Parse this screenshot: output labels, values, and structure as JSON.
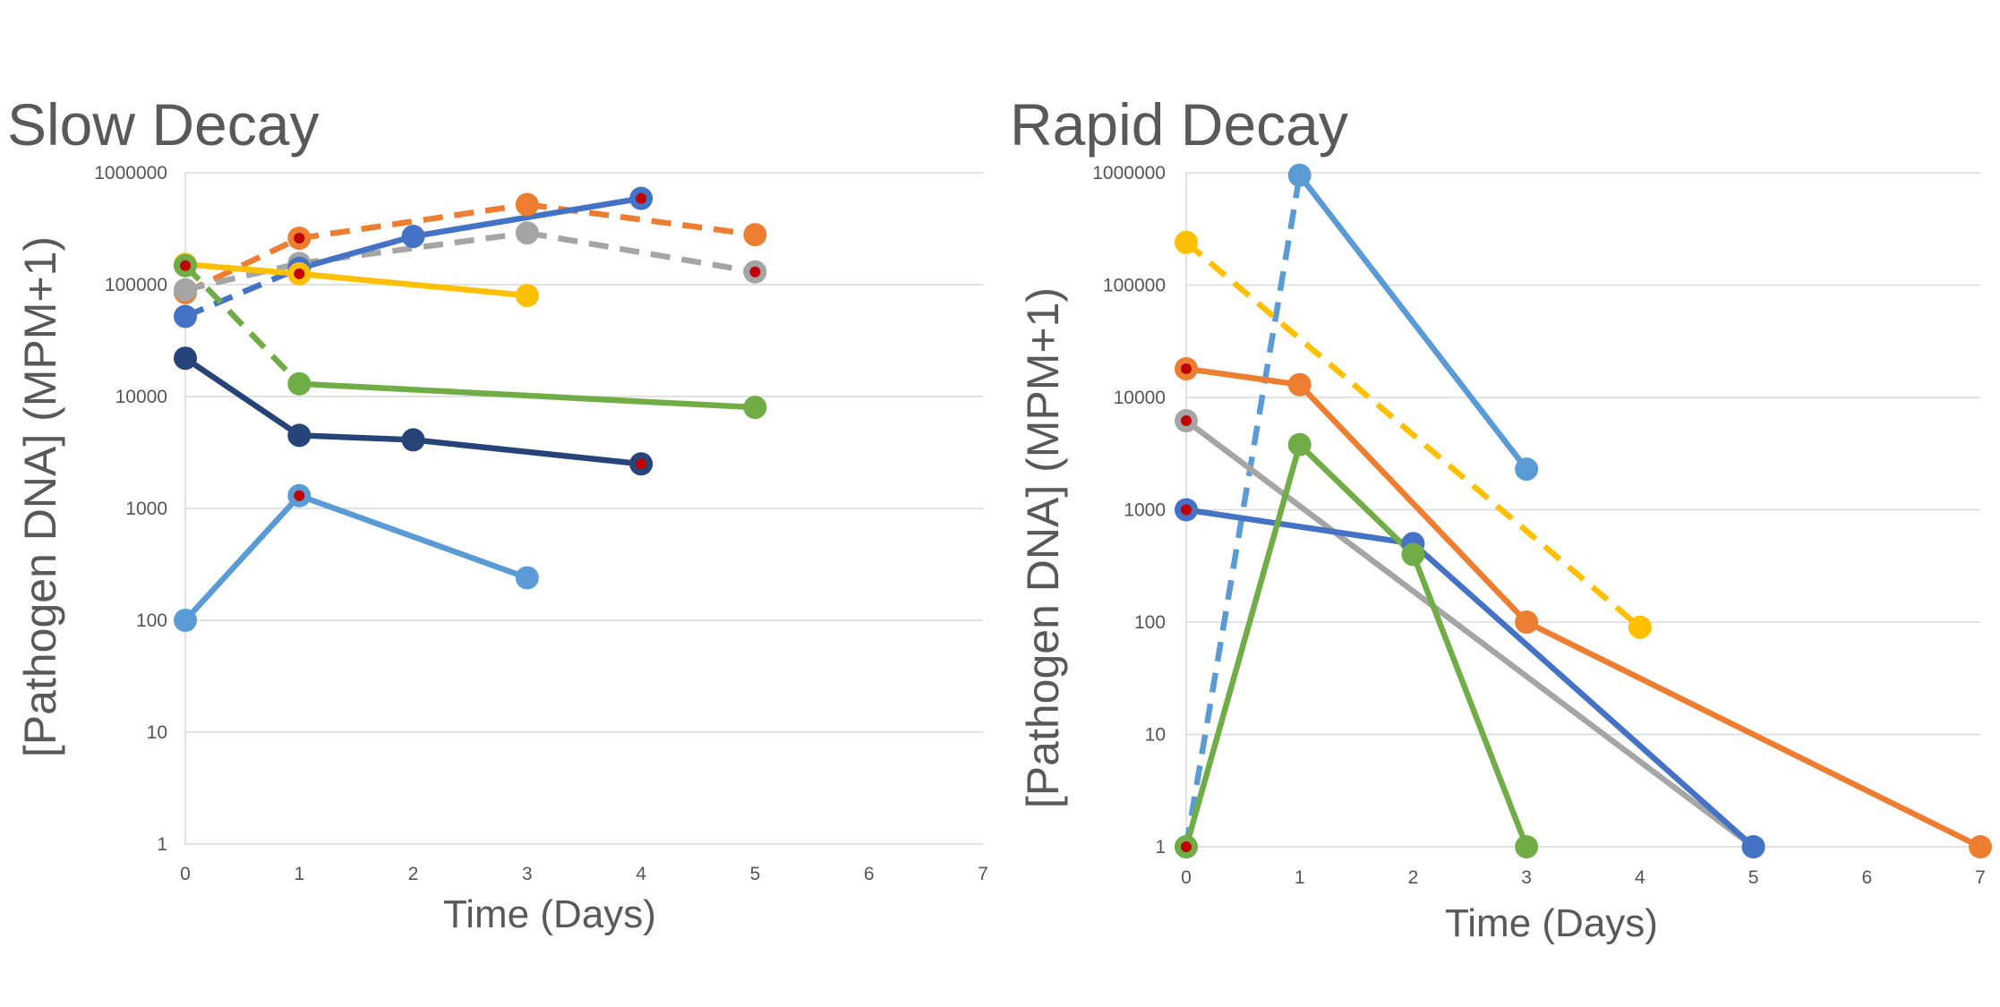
{
  "chart_data": [
    {
      "type": "line",
      "title": "Slow Decay",
      "xlabel": "Time (Days)",
      "ylabel": "[Pathogen DNA] (MPM+1)",
      "yscale": "log",
      "ylim": [
        1,
        1000000
      ],
      "xlim": [
        0,
        7
      ],
      "x_ticks": [
        "0",
        "1",
        "2",
        "3",
        "4",
        "5",
        "6",
        "7"
      ],
      "y_ticks": [
        "1",
        "10",
        "100",
        "1000",
        "10000",
        "100000",
        "1000000"
      ],
      "grid": true,
      "legend": "none",
      "series": [
        {
          "color": "#ED7D31",
          "points": [
            [
              0,
              85000,
              "red-dot",
              "dashed"
            ],
            [
              1,
              260000,
              "red-dot",
              "dashed"
            ],
            [
              3,
              520000,
              "",
              "dashed"
            ],
            [
              5,
              280000,
              "",
              ""
            ]
          ]
        },
        {
          "color": "#A5A5A5",
          "points": [
            [
              0,
              90000,
              "",
              "dashed"
            ],
            [
              1,
              155000,
              "",
              "dashed"
            ],
            [
              3,
              290000,
              "",
              "dashed"
            ],
            [
              5,
              130000,
              "red-dot",
              ""
            ]
          ]
        },
        {
          "color": "#4472C4",
          "points": [
            [
              0,
              52000,
              "",
              "dashed"
            ],
            [
              1,
              140000,
              "",
              "solid"
            ],
            [
              2,
              270000,
              "",
              "solid"
            ],
            [
              4,
              590000,
              "red-dot",
              ""
            ]
          ]
        },
        {
          "color": "#FFC000",
          "points": [
            [
              0,
              152000,
              "",
              "solid"
            ],
            [
              1,
              125000,
              "red-dot",
              "solid"
            ],
            [
              3,
              80000,
              "",
              ""
            ]
          ]
        },
        {
          "color": "#70AD47",
          "points": [
            [
              0,
              148000,
              "red-dot",
              "dashed"
            ],
            [
              1,
              13000,
              "",
              "solid"
            ],
            [
              5,
              8000,
              "",
              ""
            ]
          ]
        },
        {
          "color": "#264478",
          "points": [
            [
              0,
              22000,
              "",
              "solid"
            ],
            [
              1,
              4500,
              "",
              "solid"
            ],
            [
              2,
              4100,
              "",
              "solid"
            ],
            [
              4,
              2500,
              "red-dot",
              ""
            ]
          ]
        },
        {
          "color": "#5B9BD5",
          "points": [
            [
              0,
              100,
              "",
              "solid"
            ],
            [
              1,
              1300,
              "red-dot",
              "solid"
            ],
            [
              3,
              240,
              "",
              ""
            ]
          ]
        }
      ]
    },
    {
      "type": "line",
      "title": "Rapid Decay",
      "xlabel": "Time (Days)",
      "ylabel": "[Pathogen DNA] (MPM+1)",
      "yscale": "log",
      "ylim": [
        1,
        1000000
      ],
      "xlim": [
        0,
        7
      ],
      "x_ticks": [
        "0",
        "1",
        "2",
        "3",
        "4",
        "5",
        "6",
        "7"
      ],
      "y_ticks": [
        "1",
        "10",
        "100",
        "1000",
        "10000",
        "100000",
        "1000000"
      ],
      "grid": true,
      "legend": "none",
      "series": [
        {
          "color": "#5B9BD5",
          "points": [
            [
              0,
              1,
              "",
              "dashed"
            ],
            [
              1,
              950000,
              "",
              "solid"
            ],
            [
              3,
              2300,
              "",
              ""
            ]
          ]
        },
        {
          "color": "#FFC000",
          "points": [
            [
              0,
              240000,
              "",
              "dashed"
            ],
            [
              4,
              90,
              "",
              ""
            ]
          ]
        },
        {
          "color": "#ED7D31",
          "points": [
            [
              0,
              18000,
              "red-dot",
              "solid"
            ],
            [
              1,
              13000,
              "",
              "solid"
            ],
            [
              3,
              100,
              "",
              "solid"
            ],
            [
              7,
              1,
              "",
              ""
            ]
          ]
        },
        {
          "color": "#A5A5A5",
          "points": [
            [
              0,
              6200,
              "red-dot",
              "solid"
            ],
            [
              5,
              1,
              "",
              ""
            ]
          ]
        },
        {
          "color": "#4472C4",
          "points": [
            [
              0,
              1000,
              "red-dot",
              "solid"
            ],
            [
              2,
              500,
              "",
              "solid"
            ],
            [
              5,
              1,
              "",
              ""
            ]
          ]
        },
        {
          "color": "#70AD47",
          "points": [
            [
              0,
              1,
              "red-dot",
              "solid"
            ],
            [
              1,
              3800,
              "",
              "solid"
            ],
            [
              2,
              400,
              "",
              "solid"
            ],
            [
              3,
              1,
              "",
              ""
            ]
          ]
        }
      ]
    }
  ],
  "colors": {
    "grid": "#D9D9D9",
    "text": "#595959",
    "tick_text": "#555555",
    "marker_dot": "#C00000"
  }
}
